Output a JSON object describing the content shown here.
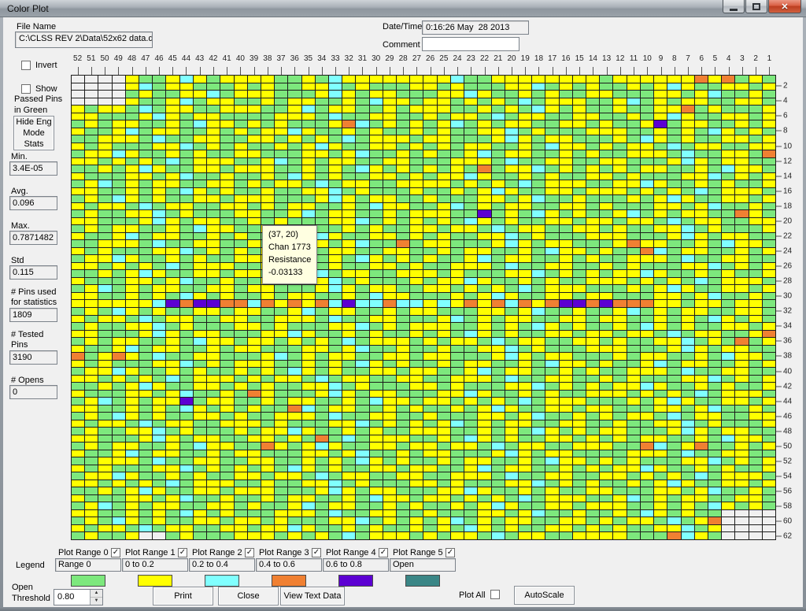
{
  "window": {
    "title": "Color Plot"
  },
  "header": {
    "file_name_label": "File Name",
    "file_name_value": "C:\\CLSS REV 2\\Data\\52x62 data.dat",
    "datetime_label": "Date/Time",
    "datetime_value": "0:16:26 May  28 2013",
    "comment_label": "Comment",
    "comment_value": ""
  },
  "left_panel": {
    "invert_label": "Invert",
    "show_label": "Show",
    "show_sub": "Passed Pins\nin Green",
    "hide_eng_button": "Hide Eng\nMode\nStats",
    "stats": [
      {
        "label": "Min.",
        "value": "3.4E-05"
      },
      {
        "label": "Avg.",
        "value": "0.096"
      },
      {
        "label": "Max.",
        "value": "0.7871482"
      },
      {
        "label": "Std",
        "value": "0.115"
      },
      {
        "label": "# Pins used\nfor statistics",
        "value": "1809"
      },
      {
        "label": "# Tested\nPins",
        "value": "3190"
      },
      {
        "label": "# Opens",
        "value": "0"
      }
    ]
  },
  "tooltip": {
    "lines": [
      "(37, 20)",
      "Chan 1773",
      "Resistance",
      "-0.03133"
    ]
  },
  "legend": {
    "section_label": "Legend",
    "ranges": [
      {
        "name": "Plot Range 0",
        "value": "Range 0",
        "color": "#7de87d",
        "checked": true
      },
      {
        "name": "Plot Range 1",
        "value": "0 to 0.2",
        "color": "#ffff00",
        "checked": true
      },
      {
        "name": "Plot Range 2",
        "value": "0.2 to 0.4",
        "color": "#80ffff",
        "checked": true
      },
      {
        "name": "Plot Range 3",
        "value": "0.4 to 0.6",
        "color": "#f08032",
        "checked": true
      },
      {
        "name": "Plot Range 4",
        "value": "0.6 to 0.8",
        "color": "#5c00d2",
        "checked": true
      },
      {
        "name": "Plot Range 5",
        "value": "Open",
        "color": "#3a8686",
        "checked": true
      }
    ]
  },
  "footer": {
    "open_threshold_label": "Open\nThreshold",
    "open_threshold_value": "0.80",
    "print_label": "Print",
    "close_label": "Close",
    "view_text_label": "View Text Data",
    "plot_all_label": "Plot All",
    "autoscale_label": "AutoScale"
  },
  "grid": {
    "columns": [
      52,
      51,
      50,
      49,
      48,
      47,
      46,
      45,
      44,
      43,
      42,
      41,
      40,
      39,
      38,
      37,
      36,
      35,
      34,
      33,
      32,
      31,
      30,
      29,
      28,
      27,
      26,
      25,
      24,
      23,
      22,
      21,
      20,
      19,
      18,
      17,
      16,
      15,
      14,
      13,
      12,
      11,
      10,
      9,
      8,
      7,
      6,
      5,
      4,
      3,
      2,
      1
    ],
    "row_labels": [
      2,
      4,
      6,
      8,
      10,
      12,
      14,
      16,
      18,
      20,
      22,
      24,
      26,
      28,
      30,
      32,
      34,
      36,
      38,
      40,
      42,
      44,
      46,
      48,
      50,
      52,
      54,
      56,
      58,
      60,
      62
    ],
    "color_key": {
      "g": "#7de87d",
      "y": "#ffff00",
      "c": "#80ffff",
      "o": "#f08032",
      "p": "#5c00d2",
      "t": "#3a8686",
      "w": "#f0f0f0"
    },
    "rows": [
      "wwwwyggycygyyyyggygcyyyyyyyycggyyyyyyyygyyyyyyoyogyg",
      "wwwwycgyygggygyggyycgygggyygygggyycgygyggygycyggyygy",
      "wwwwgyggyycgyyygggycygyygggyycyggygyggyygggyygycggyg",
      "wwwwyggycgyyggygyyggygcyygyygygygcgyyyggycgygyyggyyg",
      "ygyygcgyyggyyyggycgyyggygyyyggygygcygyggyggyyogygggy",
      "yygggycygyyggggyyygcggyyggygyygcgyyggyyggygycyggyygy",
      "gygyyggygcyygygygggyocgygygycgygyyggyygyggypgyyggygy",
      "yggycgyyggygygyycyggygyggygyggyycgygggyyyggygygcygyg",
      "ggyyygcggyyggyygygygcgyyygyygggycygyygggygcygyggyygy",
      "ygygggyycgygyggygycyggyygygygyyggygcyygygyygcgyyggyy",
      "gyycyggygyggyygggyygycggygyggycgyyggygyggyyygcggyygo",
      "yygygygcgyyyggycgygyyggyygggyyygcggyyggyygggycygyygg",
      "ggygycyggyygyyyggygygcygygygygogyycgygygygyyggygcyyg",
      "ygggyygycggyggygcygyggyygygyycyggygyggyygygggyycgygy",
      "gycgygyyggyygygyygcgyyggyyyygygygcgyyyggyycyggygyggy",
      "yyggygygcygyggyggyycgygggyggygycyggyygyyygygygcgyyyg",
      "gygcygyggyygyyygggycygyyggygggyygycggygggygycyggyygy",
      "ygyygcgyyggyygygyyggygcyyggycgygyyggyygygggyygycggyg",
      "gyggyycgygggyyggycgyyggygyyyggpgygcygyggycgygyyggoyg",
      "yygggycygyyggygygggyycgygygygcygyggyygyygyygcgyyggyy",
      "gygyyggygcyyggyycyggygyggyygyygcgyyggyygyggyycgygggy",
      "yggycgyyggygyggygycyggyygygyggyycgygggyyygggycygyygg",
      "ggyyygcggyyggygggyygycggogyygggycygyygggyoyyggygcyyg",
      "ygygggyycgygygycgygyyggyyggygyyggygcyygyggocgyyggygy",
      "gyycyggygyggyyyggygygcygygyggycgyyggygyggyyygcggyygg",
      "yygygygcgyyyggygcygyggyygyggyyygcggyyggygygggyycgygy",
      "ggygycyggyygyygyygcgyyggyyygygggyycgygygyycyggygyggy",
      "ygggyygycggyggyggyycgygggygyycyggygyggyyygygygcgyyyg",
      "gycgygyyggyygyygggycygyyggyygygygcgyyygggygycyggyygy",
      "yyggygygcygyggygyyggygcyygggygycyggyygyygggyygycggyg",
      "yyyyyycpoppoocoyoyocpccoccycyoyocoyoppopoooyygyygyyg",
      "gygcygyggyygyyggycgyyggygyygggyygycggyggycgygyyggyyg",
      "ygyygcgyyggyyggyyygcggyygggycgygyyggyygyyggygygcygyg",
      "gyggyycgygggyygygggyycgygyyyggygygcygyggygcygyggyygy",
      "yygggycygyygggyycyggygyggygygcygyggyygyygyygcgyyggyo",
      "gygyyggygcyygyygygygcgyyygygyygcgyyggyygyggyycgygogy",
      "yggycgyyggygyygggyygycggyggyggyycgygggyyygggycygyygg",
      "ogyoygcggyygggycgygyyggyygyygggycygyygggygyyggygcyyg",
      "ygygggyycgygyyyggygygcygyggygyyggygcyygyggycgyyggygy",
      "gyycyggygyggygygcygyggyygyyggycgyyggygyggyyygcggyygg",
      "yygygygcgyyygygyygcgyyggyyggyyygcggyyggygygggyycgygy",
      "ggygycyggyygygyggyycgygggyygygggyycgygygyycyggygyggy",
      "ygggyygycggygoygggycygyygggyycyggygyggyyygygygcgyyyg",
      "gycgygyypgyyggygyyggygcyygyygygygcgyyygggygycyggyygy",
      "yyggygygcygygyggocgyyggygyggygycyggyygyygggyygycggyg",
      "gygcygyggyygyggyyygcggyyggygggyygycggygygyygcgyyggyy",
      "ygyygcgyyggyyygygggyycgygygycgygyyggyyggyggyycgygggy",
      "gyggyycgygggygyycyggygyggyyyggygygcygygyygggycygyygg",
      "yygggycygyyggyygygogcgyyyggygcygyggyygygygyyggygcyyg",
      "gygyyggygcyyggoygycyggyygyygyygcgyyggyyyggocgyoggygy",
      "yggycgyyggygyygggyygycggygyygggycygyyggggyyygcggyygg",
      "ggyyygcggyyggyyggygygcygyggygyyggygcyygygygggyycgygy",
      "ygygggyycgygygygcygyggyygyyggycgyyggygygyycyggygyggy",
      "gyycyggygyggyygyygcgyyggyyggyyygcggyyggyygygygcgyyyg",
      "yygygygcgyyyggyggyycgygggyygygggyycgygyggygycyggyygy",
      "ggygycyggyygyyygggycygyygggyycyggygyggyygggyygycggyg",
      "ygggyygycggyggygyyggygcyygyygygygcgyyyggycgygyyggyyg",
      "gycgygyyggyygyggycgyyggygyggygycyggyygyyyggygygcygyg",
      "yyggygygcygygggyyygcggyyggygggyygycggyggygcygyggwwww",
      "gygcygyggyygyygygggyycgygygycgygyyggyygygyygcgyowwww",
      "ygyygcgyyggyygyycyggygyggygygcygyggyygygyggyycgywwww",
      "gyggywwgygggyyygygygcgyyygygyygcgyyggyyyygggocygwwww"
    ]
  }
}
